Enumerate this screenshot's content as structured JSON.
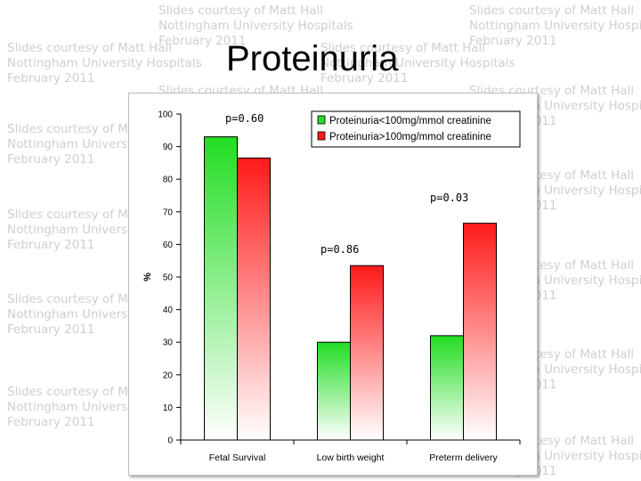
{
  "watermark": {
    "line1": "Slides courtesy of Matt Hall",
    "line2": "Nottingham University Hospitals",
    "line3": "February 2011"
  },
  "slide_title": "Proteinuria",
  "colors": {
    "green": "#22dd22",
    "red": "#ff1a1a"
  },
  "chart_data": {
    "type": "bar",
    "categories": [
      "Fetal Survival",
      "Low birth weight",
      "Preterm delivery"
    ],
    "series": [
      {
        "name": "Proteinuria<100mg/mmol creatinine",
        "values": [
          93,
          30,
          32
        ]
      },
      {
        "name": "Proteinuria>100mg/mmol creatinine",
        "values": [
          86.5,
          53.5,
          66.5
        ]
      }
    ],
    "ylabel": "%",
    "ylim": [
      0,
      100
    ],
    "yticks": [
      0,
      10,
      20,
      30,
      40,
      50,
      60,
      70,
      80,
      90,
      100
    ],
    "legend": "top-right",
    "grid": false,
    "annotations": [
      "p=0.60",
      "p=0.86",
      "p=0.03"
    ]
  }
}
